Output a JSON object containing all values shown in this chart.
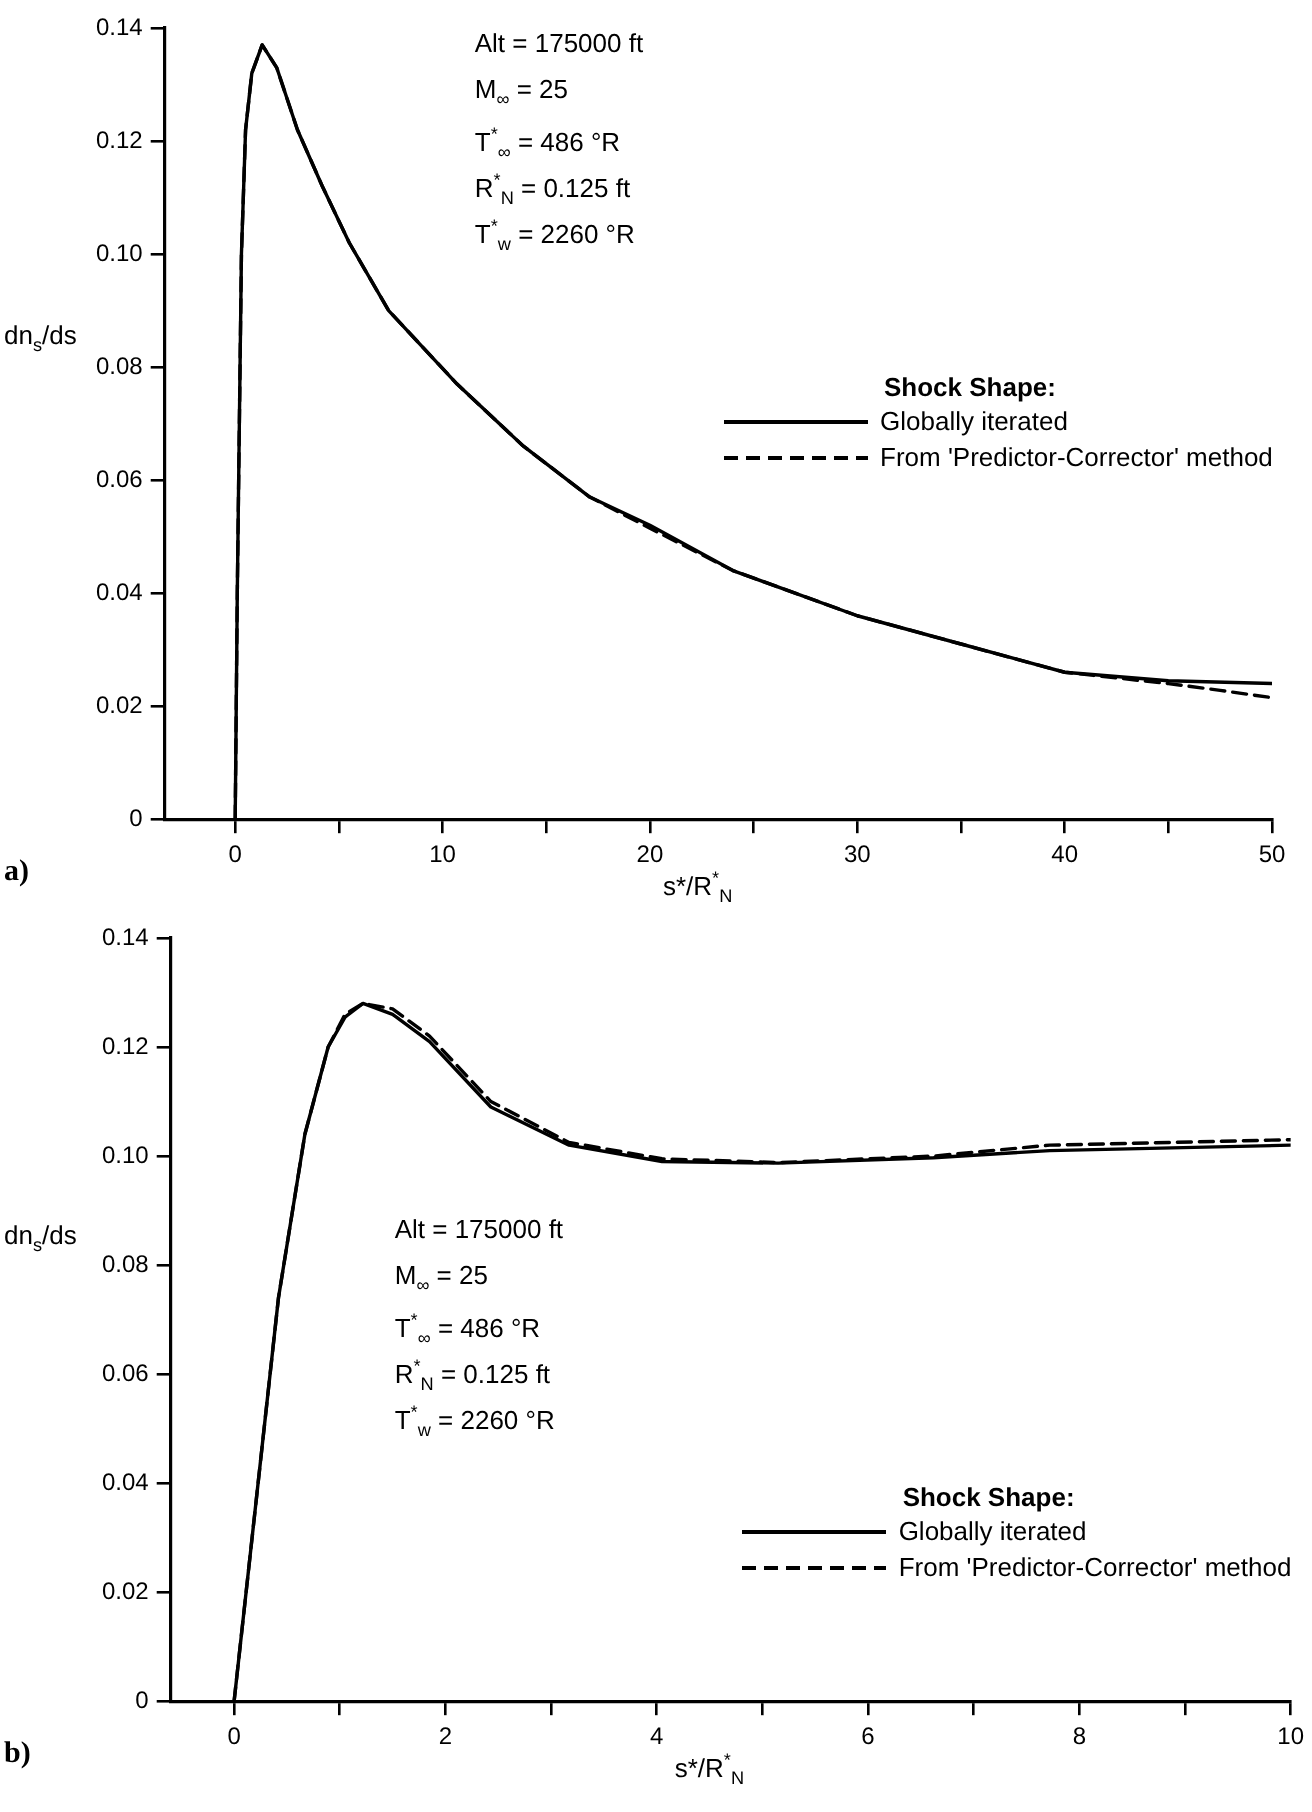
{
  "chart_data": [
    {
      "type": "line",
      "title": "a)",
      "xlabel": "s*/R$^{*}$$_{N}$",
      "ylabel": "dn$_{s}$/ds",
      "legend_title": "Shock Shape:",
      "annotations": [
        "Alt = 175000 ft",
        "M$_{∞}$ = 25",
        "T$^{*}$$_{∞}$ = 486 °R",
        "R$^{*}$$_{N}$ = 0.125 ft",
        "T$^{*}$$_{w}$ = 2260 °R"
      ],
      "xlim": [
        -3.4,
        50
      ],
      "xticks": [
        0,
        {
          "value": 5,
          "label": null
        },
        10,
        {
          "value": 15,
          "label": null
        },
        20,
        {
          "value": 25,
          "label": null
        },
        30,
        {
          "value": 35,
          "label": null
        },
        40,
        {
          "value": 45,
          "label": null
        },
        50
      ],
      "ylim": [
        0,
        0.14
      ],
      "yticks": [
        0,
        0.02,
        0.04,
        0.06,
        0.08,
        {
          "value": 0.1,
          "label": "0.10"
        },
        0.12,
        0.14
      ],
      "grid": false,
      "legend": "right",
      "marker": "none",
      "series": [
        {
          "name": "Globally iterated",
          "color": "#000000",
          "line_style": "solid",
          "x": [
            0,
            0.1,
            0.3,
            0.5,
            0.8,
            1.3,
            2,
            3,
            4.2,
            5.5,
            7.4,
            10.7,
            13.9,
            17.1,
            20,
            24,
            30,
            35,
            40,
            45,
            50
          ],
          "values": [
            0,
            0.04,
            0.1,
            0.122,
            0.132,
            0.137,
            0.133,
            0.122,
            0.112,
            0.102,
            0.09,
            0.077,
            0.066,
            0.057,
            0.052,
            0.044,
            0.036,
            0.031,
            0.026,
            0.0245,
            0.024
          ]
        },
        {
          "name": "From 'Predictor-Corrector' method",
          "color": "#000000",
          "line_style": "dashed",
          "x": [
            0,
            0.1,
            0.3,
            0.5,
            0.8,
            1.3,
            2,
            3,
            4.2,
            5.5,
            7.4,
            10.7,
            13.9,
            17.1,
            20,
            24,
            30,
            35,
            40,
            45,
            47.5,
            50
          ],
          "values": [
            0,
            0.04,
            0.1,
            0.122,
            0.132,
            0.137,
            0.133,
            0.122,
            0.112,
            0.102,
            0.09,
            0.077,
            0.066,
            0.057,
            0.0515,
            0.044,
            0.036,
            0.031,
            0.026,
            0.024,
            0.0228,
            0.0215
          ]
        }
      ]
    },
    {
      "type": "line",
      "title": "b)",
      "xlabel": "s*/R$^{*}$$_{N}$",
      "ylabel": "dn$_{s}$/ds",
      "legend_title": "Shock Shape:",
      "annotations": [
        "Alt = 175000 ft",
        "M$_{∞}$ = 25",
        "T$^{*}$$_{∞}$ = 486 °R",
        "R$^{*}$$_{N}$ = 0.125 ft",
        "T$^{*}$$_{w}$ = 2260 °R"
      ],
      "xlim": [
        -0.6,
        10
      ],
      "xticks": [
        0,
        {
          "value": 1,
          "label": null
        },
        2,
        {
          "value": 3,
          "label": null
        },
        4,
        {
          "value": 5,
          "label": null
        },
        6,
        {
          "value": 7,
          "label": null
        },
        8,
        {
          "value": 9,
          "label": null
        },
        10
      ],
      "ylim": [
        0,
        0.14
      ],
      "yticks": [
        0,
        0.02,
        0.04,
        0.06,
        0.08,
        {
          "value": 0.1,
          "label": "0.10"
        },
        0.12,
        0.14
      ],
      "grid": false,
      "legend": "bottom right",
      "marker": "none",
      "series": [
        {
          "name": "Globally iterated",
          "color": "#000000",
          "line_style": "solid",
          "x": [
            0,
            0.42,
            0.67,
            0.89,
            1.05,
            1.22,
            1.5,
            1.85,
            2.43,
            3.17,
            4.05,
            5.15,
            6.62,
            7.72,
            10
          ],
          "values": [
            0,
            0.074,
            0.104,
            0.12,
            0.1255,
            0.128,
            0.126,
            0.121,
            0.109,
            0.102,
            0.099,
            0.0987,
            0.0997,
            0.101,
            0.102
          ]
        },
        {
          "name": "From 'Predictor-Corrector' method",
          "color": "#000000",
          "line_style": "dashed",
          "x": [
            0,
            0.42,
            0.67,
            0.89,
            1.05,
            1.22,
            1.5,
            1.85,
            2.43,
            3.17,
            4.05,
            5.15,
            6.62,
            7.72,
            10
          ],
          "values": [
            0,
            0.074,
            0.104,
            0.12,
            0.126,
            0.128,
            0.127,
            0.122,
            0.11,
            0.1025,
            0.0995,
            0.0988,
            0.1,
            0.102,
            0.103
          ]
        }
      ]
    }
  ]
}
